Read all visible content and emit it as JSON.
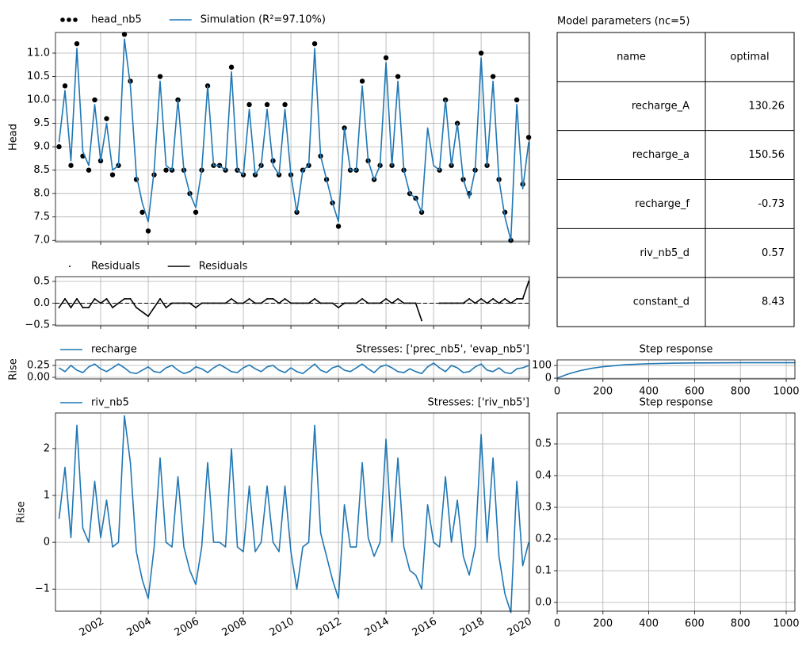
{
  "chart_data": [
    {
      "type": "line",
      "ylabel": "Head",
      "x": [
        2000.25,
        2000.5,
        2000.75,
        2001.0,
        2001.25,
        2001.5,
        2001.75,
        2002.0,
        2002.25,
        2002.5,
        2002.75,
        2003.0,
        2003.25,
        2003.5,
        2003.75,
        2004.0,
        2004.25,
        2004.5,
        2004.75,
        2005.0,
        2005.25,
        2005.5,
        2005.75,
        2006.0,
        2006.25,
        2006.5,
        2006.75,
        2007.0,
        2007.25,
        2007.5,
        2007.75,
        2008.0,
        2008.25,
        2008.5,
        2008.75,
        2009.0,
        2009.25,
        2009.5,
        2009.75,
        2010.0,
        2010.25,
        2010.5,
        2010.75,
        2011.0,
        2011.25,
        2011.5,
        2011.75,
        2012.0,
        2012.25,
        2012.5,
        2012.75,
        2013.0,
        2013.25,
        2013.5,
        2013.75,
        2014.0,
        2014.25,
        2014.5,
        2014.75,
        2015.0,
        2015.25,
        2015.5,
        2015.75,
        2016.0,
        2016.25,
        2016.5,
        2016.75,
        2017.0,
        2017.25,
        2017.5,
        2017.75,
        2018.0,
        2018.25,
        2018.5,
        2018.75,
        2019.0,
        2019.25,
        2019.5,
        2019.75,
        2020.0
      ],
      "series": [
        {
          "name": "head_nb5",
          "color": "#000000",
          "marker": "o",
          "values": [
            9.0,
            10.3,
            8.6,
            11.2,
            8.8,
            8.5,
            10.0,
            8.7,
            9.6,
            8.4,
            8.6,
            11.4,
            10.4,
            8.3,
            7.6,
            7.2,
            8.4,
            10.5,
            8.5,
            8.5,
            10.0,
            8.5,
            8.0,
            7.6,
            8.5,
            10.3,
            8.6,
            8.6,
            8.5,
            10.7,
            8.5,
            8.4,
            9.9,
            8.4,
            8.6,
            9.9,
            8.7,
            8.4,
            9.9,
            8.4,
            7.6,
            8.5,
            8.6,
            11.2,
            8.8,
            8.3,
            7.8,
            7.3,
            9.4,
            8.5,
            8.5,
            10.4,
            8.7,
            8.3,
            8.6,
            10.9,
            8.6,
            10.5,
            8.5,
            8.0,
            7.9,
            7.6,
            null,
            null,
            8.5,
            10.0,
            8.6,
            9.5,
            8.3,
            8.0,
            8.5,
            11.0,
            8.6,
            10.5,
            8.3,
            7.6,
            7.0,
            10.0,
            8.2,
            9.2
          ]
        },
        {
          "name": "Simulation (R²=97.10%)",
          "color": "#1f77b4",
          "values": [
            9.1,
            10.2,
            8.7,
            11.1,
            8.9,
            8.6,
            9.9,
            8.7,
            9.5,
            8.5,
            8.6,
            11.3,
            10.3,
            8.4,
            7.8,
            7.4,
            8.5,
            10.4,
            8.6,
            8.5,
            10.0,
            8.5,
            8.0,
            7.7,
            8.5,
            10.3,
            8.6,
            8.6,
            8.5,
            10.6,
            8.5,
            8.4,
            9.8,
            8.4,
            8.6,
            9.8,
            8.6,
            8.4,
            9.8,
            8.4,
            7.6,
            8.5,
            8.6,
            11.1,
            8.8,
            8.3,
            7.8,
            7.4,
            9.4,
            8.5,
            8.5,
            10.3,
            8.7,
            8.3,
            8.6,
            10.8,
            8.6,
            10.4,
            8.5,
            8.0,
            7.9,
            7.6,
            9.4,
            8.6,
            8.5,
            10.0,
            8.6,
            9.5,
            8.3,
            7.9,
            8.5,
            10.9,
            8.6,
            10.4,
            8.3,
            7.5,
            7.0,
            9.9,
            8.1,
            9.1
          ]
        }
      ],
      "xlim": [
        2000.1,
        2020.03
      ],
      "xticks": [
        2002,
        2004,
        2006,
        2008,
        2010,
        2012,
        2014,
        2016,
        2018,
        2020
      ],
      "ylim": [
        6.97,
        11.44
      ],
      "yticks": [
        {
          "value": 7.0,
          "label": "7.0"
        },
        {
          "value": 7.5,
          "label": "7.5"
        },
        {
          "value": 8.0,
          "label": "8.0"
        },
        {
          "value": 8.5,
          "label": "8.5"
        },
        {
          "value": 9.0,
          "label": "9.0"
        },
        {
          "value": 9.5,
          "label": "9.5"
        },
        {
          "value": 10.0,
          "label": "10.0"
        },
        {
          "value": 10.5,
          "label": "10.5"
        },
        {
          "value": 11.0,
          "label": "11.0"
        }
      ],
      "grid": true
    },
    {
      "type": "line",
      "x": [
        2000.25,
        2000.5,
        2000.75,
        2001.0,
        2001.25,
        2001.5,
        2001.75,
        2002.0,
        2002.25,
        2002.5,
        2002.75,
        2003.0,
        2003.25,
        2003.5,
        2003.75,
        2004.0,
        2004.25,
        2004.5,
        2004.75,
        2005.0,
        2005.25,
        2005.5,
        2005.75,
        2006.0,
        2006.25,
        2006.5,
        2006.75,
        2007.0,
        2007.25,
        2007.5,
        2007.75,
        2008.0,
        2008.25,
        2008.5,
        2008.75,
        2009.0,
        2009.25,
        2009.5,
        2009.75,
        2010.0,
        2010.25,
        2010.5,
        2010.75,
        2011.0,
        2011.25,
        2011.5,
        2011.75,
        2012.0,
        2012.25,
        2012.5,
        2012.75,
        2013.0,
        2013.25,
        2013.5,
        2013.75,
        2014.0,
        2014.25,
        2014.5,
        2014.75,
        2015.0,
        2015.25,
        2015.5,
        2015.75,
        2016.0,
        2016.25,
        2016.5,
        2016.75,
        2017.0,
        2017.25,
        2017.5,
        2017.75,
        2018.0,
        2018.25,
        2018.5,
        2018.75,
        2019.0,
        2019.25,
        2019.5,
        2019.75,
        2020.0
      ],
      "series": [
        {
          "name": "Residuals",
          "color": "#000000",
          "marker": ".",
          "values": [
            -0.1,
            0.1,
            -0.1,
            0.1,
            -0.1,
            -0.1,
            0.1,
            0.0,
            0.1,
            -0.1,
            0.0,
            0.1,
            0.1,
            -0.1,
            -0.2,
            -0.3,
            -0.1,
            0.1,
            -0.1,
            0.0,
            0.0,
            0.0,
            0.0,
            -0.1,
            0.0,
            0.0,
            0.0,
            0.0,
            0.0,
            0.1,
            0.0,
            0.0,
            0.1,
            0.0,
            0.0,
            0.1,
            0.1,
            0.0,
            0.1,
            0.0,
            0.0,
            0.0,
            0.0,
            0.1,
            0.0,
            0.0,
            0.0,
            -0.1,
            0.0,
            0.0,
            0.0,
            0.1,
            0.0,
            0.0,
            0.0,
            0.1,
            0.0,
            0.1,
            0.0,
            0.0,
            0.0,
            -0.4,
            null,
            null,
            0.0,
            0.0,
            0.0,
            0.0,
            0.0,
            0.1,
            0.0,
            0.1,
            0.0,
            0.1,
            0.0,
            0.1,
            0.0,
            0.1,
            0.1,
            0.5
          ]
        },
        {
          "name": "Residuals",
          "color": "#000000",
          "values": [
            -0.1,
            0.1,
            -0.1,
            0.1,
            -0.1,
            -0.1,
            0.1,
            0.0,
            0.1,
            -0.1,
            0.0,
            0.1,
            0.1,
            -0.1,
            -0.2,
            -0.3,
            -0.1,
            0.1,
            -0.1,
            0.0,
            0.0,
            0.0,
            0.0,
            -0.1,
            0.0,
            0.0,
            0.0,
            0.0,
            0.0,
            0.1,
            0.0,
            0.0,
            0.1,
            0.0,
            0.0,
            0.1,
            0.1,
            0.0,
            0.1,
            0.0,
            0.0,
            0.0,
            0.0,
            0.1,
            0.0,
            0.0,
            0.0,
            -0.1,
            0.0,
            0.0,
            0.0,
            0.1,
            0.0,
            0.0,
            0.0,
            0.1,
            0.0,
            0.1,
            0.0,
            0.0,
            0.0,
            -0.4,
            null,
            null,
            0.0,
            0.0,
            0.0,
            0.0,
            0.0,
            0.1,
            0.0,
            0.1,
            0.0,
            0.1,
            0.0,
            0.1,
            0.0,
            0.1,
            0.1,
            0.5
          ]
        }
      ],
      "xlim": [
        2000.1,
        2020.03
      ],
      "xticks": [
        2002,
        2004,
        2006,
        2008,
        2010,
        2012,
        2014,
        2016,
        2018,
        2020
      ],
      "ylim": [
        -0.52,
        0.61
      ],
      "yticks": [
        {
          "value": -0.5,
          "label": "−0.5"
        },
        {
          "value": 0.0,
          "label": "0.0"
        },
        {
          "value": 0.5,
          "label": "0.5"
        }
      ],
      "grid": true
    },
    {
      "type": "line",
      "title": "Stresses: ['prec_nb5', 'evap_nb5']",
      "ylabel": "Rise",
      "x": [
        2000.25,
        2000.5,
        2000.75,
        2001.0,
        2001.25,
        2001.5,
        2001.75,
        2002.0,
        2002.25,
        2002.5,
        2002.75,
        2003.0,
        2003.25,
        2003.5,
        2003.75,
        2004.0,
        2004.25,
        2004.5,
        2004.75,
        2005.0,
        2005.25,
        2005.5,
        2005.75,
        2006.0,
        2006.25,
        2006.5,
        2006.75,
        2007.0,
        2007.25,
        2007.5,
        2007.75,
        2008.0,
        2008.25,
        2008.5,
        2008.75,
        2009.0,
        2009.25,
        2009.5,
        2009.75,
        2010.0,
        2010.25,
        2010.5,
        2010.75,
        2011.0,
        2011.25,
        2011.5,
        2011.75,
        2012.0,
        2012.25,
        2012.5,
        2012.75,
        2013.0,
        2013.25,
        2013.5,
        2013.75,
        2014.0,
        2014.25,
        2014.5,
        2014.75,
        2015.0,
        2015.25,
        2015.5,
        2015.75,
        2016.0,
        2016.25,
        2016.5,
        2016.75,
        2017.0,
        2017.25,
        2017.5,
        2017.75,
        2018.0,
        2018.25,
        2018.5,
        2018.75,
        2019.0,
        2019.25,
        2019.5,
        2019.75,
        2020.0
      ],
      "series": [
        {
          "name": "recharge",
          "color": "#1f77b4",
          "values": [
            0.2,
            0.12,
            0.25,
            0.15,
            0.1,
            0.22,
            0.28,
            0.18,
            0.12,
            0.2,
            0.28,
            0.2,
            0.1,
            0.08,
            0.15,
            0.22,
            0.12,
            0.1,
            0.2,
            0.25,
            0.15,
            0.08,
            0.12,
            0.22,
            0.18,
            0.1,
            0.2,
            0.27,
            0.2,
            0.12,
            0.1,
            0.2,
            0.26,
            0.18,
            0.12,
            0.22,
            0.25,
            0.15,
            0.1,
            0.2,
            0.12,
            0.08,
            0.18,
            0.28,
            0.15,
            0.1,
            0.2,
            0.24,
            0.15,
            0.12,
            0.2,
            0.28,
            0.18,
            0.1,
            0.22,
            0.26,
            0.2,
            0.12,
            0.1,
            0.18,
            0.12,
            0.08,
            0.22,
            0.3,
            0.2,
            0.12,
            0.25,
            0.2,
            0.1,
            0.12,
            0.22,
            0.28,
            0.15,
            0.12,
            0.2,
            0.1,
            0.08,
            0.18,
            0.2,
            0.25
          ]
        }
      ],
      "xlim": [
        2000.1,
        2020.03
      ],
      "xticks": [
        2002,
        2004,
        2006,
        2008,
        2010,
        2012,
        2014,
        2016,
        2018,
        2020
      ],
      "ylim": [
        -0.033,
        0.367
      ],
      "yticks": [
        {
          "value": 0.0,
          "label": "0.00"
        },
        {
          "value": 0.25,
          "label": "0.25"
        }
      ],
      "grid": true
    },
    {
      "type": "line",
      "title": "Stresses: ['riv_nb5']",
      "ylabel": "Rise",
      "x": [
        2000.25,
        2000.5,
        2000.75,
        2001.0,
        2001.25,
        2001.5,
        2001.75,
        2002.0,
        2002.25,
        2002.5,
        2002.75,
        2003.0,
        2003.25,
        2003.5,
        2003.75,
        2004.0,
        2004.25,
        2004.5,
        2004.75,
        2005.0,
        2005.25,
        2005.5,
        2005.75,
        2006.0,
        2006.25,
        2006.5,
        2006.75,
        2007.0,
        2007.25,
        2007.5,
        2007.75,
        2008.0,
        2008.25,
        2008.5,
        2008.75,
        2009.0,
        2009.25,
        2009.5,
        2009.75,
        2010.0,
        2010.25,
        2010.5,
        2010.75,
        2011.0,
        2011.25,
        2011.5,
        2011.75,
        2012.0,
        2012.25,
        2012.5,
        2012.75,
        2013.0,
        2013.25,
        2013.5,
        2013.75,
        2014.0,
        2014.25,
        2014.5,
        2014.75,
        2015.0,
        2015.25,
        2015.5,
        2015.75,
        2016.0,
        2016.25,
        2016.5,
        2016.75,
        2017.0,
        2017.25,
        2017.5,
        2017.75,
        2018.0,
        2018.25,
        2018.5,
        2018.75,
        2019.0,
        2019.25,
        2019.5,
        2019.75,
        2020.0
      ],
      "series": [
        {
          "name": "riv_nb5",
          "color": "#1f77b4",
          "values": [
            0.5,
            1.6,
            0.1,
            2.5,
            0.3,
            0.0,
            1.3,
            0.1,
            0.9,
            -0.1,
            0.0,
            2.7,
            1.7,
            -0.2,
            -0.8,
            -1.2,
            -0.1,
            1.8,
            0.0,
            -0.1,
            1.4,
            -0.1,
            -0.6,
            -0.9,
            -0.1,
            1.7,
            0.0,
            0.0,
            -0.1,
            2.0,
            -0.1,
            -0.2,
            1.2,
            -0.2,
            0.0,
            1.2,
            0.0,
            -0.2,
            1.2,
            -0.2,
            -1.0,
            -0.1,
            0.0,
            2.5,
            0.2,
            -0.3,
            -0.8,
            -1.2,
            0.8,
            -0.1,
            -0.1,
            1.7,
            0.1,
            -0.3,
            0.0,
            2.2,
            0.0,
            1.8,
            -0.1,
            -0.6,
            -0.7,
            -1.0,
            0.8,
            0.0,
            -0.1,
            1.4,
            0.0,
            0.9,
            -0.3,
            -0.7,
            -0.1,
            2.3,
            0.0,
            1.8,
            -0.3,
            -1.1,
            -1.5,
            1.3,
            -0.5,
            0.0
          ]
        }
      ],
      "xlim": [
        2000.1,
        2020.03
      ],
      "xticks": [
        2002,
        2004,
        2006,
        2008,
        2010,
        2012,
        2014,
        2016,
        2018,
        2020
      ],
      "ylim": [
        -1.47,
        2.76
      ],
      "yticks": [
        {
          "value": -1,
          "label": "−1"
        },
        0,
        1,
        2
      ],
      "grid": true
    },
    {
      "type": "table",
      "title": "Model parameters (nc=5)",
      "columns": [
        "name",
        "optimal"
      ],
      "rows": [
        [
          "recharge_A",
          130.26
        ],
        [
          "recharge_a",
          150.56
        ],
        [
          "recharge_f",
          -0.73
        ],
        [
          "riv_nb5_d",
          0.57
        ],
        [
          "constant_d",
          8.43
        ]
      ]
    },
    {
      "type": "line",
      "title": "Step response",
      "x": [
        0,
        50,
        100,
        150,
        200,
        300,
        400,
        500,
        600,
        800,
        1040
      ],
      "series": [
        {
          "name": "recharge",
          "color": "#1f77b4",
          "values": [
            0,
            34,
            59,
            77,
            90,
            106,
            114,
            118,
            120,
            122,
            122
          ]
        }
      ],
      "xlim": [
        0,
        1038
      ],
      "xticks": [
        0,
        200,
        400,
        600,
        800,
        1000
      ],
      "ylim": [
        -6,
        144
      ],
      "yticks": [
        0,
        100
      ],
      "grid": true
    },
    {
      "type": "line",
      "title": "Step response",
      "x": [],
      "series": [],
      "xlim": [
        0,
        1038
      ],
      "xticks": [
        0,
        200,
        400,
        600,
        800,
        1000
      ],
      "ylim": [
        -0.0275,
        0.5975
      ],
      "yticks": [
        {
          "value": 0.0,
          "label": "0.0"
        },
        {
          "value": 0.1,
          "label": "0.1"
        },
        {
          "value": 0.2,
          "label": "0.2"
        },
        {
          "value": 0.3,
          "label": "0.3"
        },
        {
          "value": 0.4,
          "label": "0.4"
        },
        {
          "value": 0.5,
          "label": "0.5"
        }
      ],
      "grid": true
    }
  ]
}
